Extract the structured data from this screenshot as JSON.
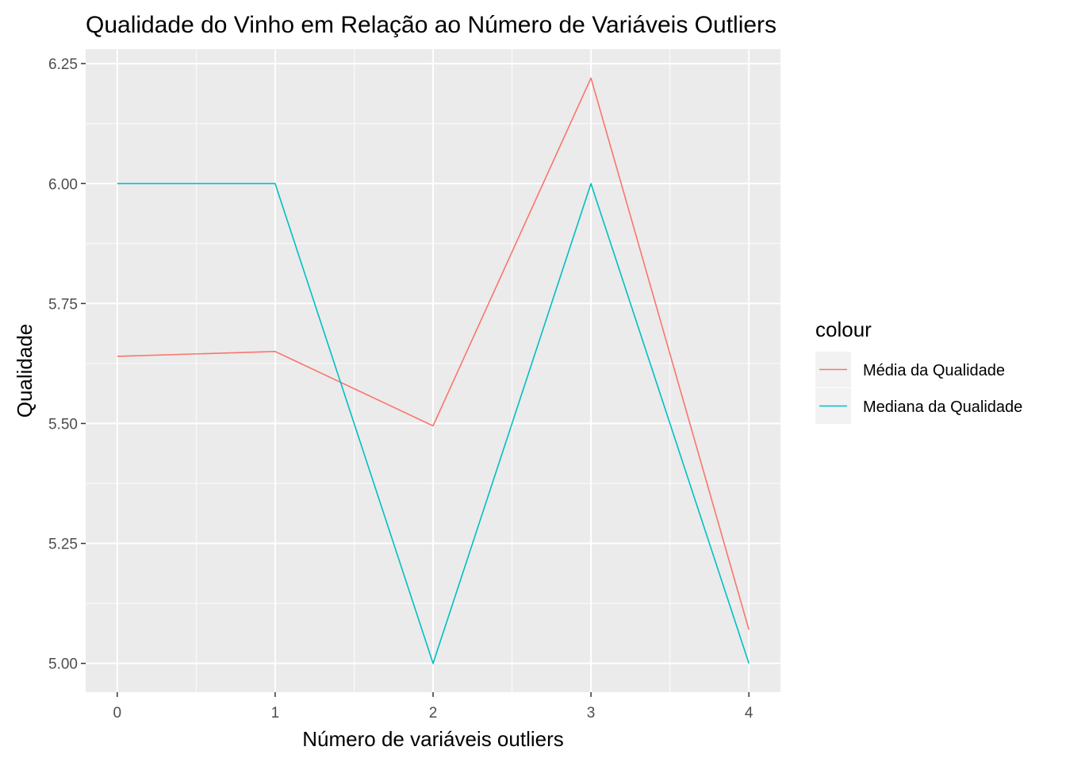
{
  "chart_data": {
    "type": "line",
    "title": "Qualidade do Vinho em Relação ao Número de Variáveis Outliers",
    "xlabel": "Número de variáveis outliers",
    "ylabel": "Qualidade",
    "x": [
      0,
      1,
      2,
      3,
      4
    ],
    "x_ticks": [
      "0",
      "1",
      "2",
      "3",
      "4"
    ],
    "xlim": [
      -0.2,
      4.2
    ],
    "y_ticks": [
      "5.00",
      "5.25",
      "5.50",
      "5.75",
      "6.00",
      "6.25"
    ],
    "y_tick_values": [
      5.0,
      5.25,
      5.5,
      5.75,
      6.0,
      6.25
    ],
    "ylim": [
      4.94,
      6.28
    ],
    "grid": true,
    "legend_title": "colour",
    "legend_position": "right",
    "series": [
      {
        "name": "Média da Qualidade",
        "color": "#F8766D",
        "values": [
          5.64,
          5.65,
          5.495,
          6.22,
          5.07
        ]
      },
      {
        "name": "Mediana da Qualidade",
        "color": "#00BFC4",
        "values": [
          6.0,
          6.0,
          5.0,
          6.0,
          5.0
        ]
      }
    ]
  },
  "colors": {
    "panel_background": "#EBEBEB",
    "grid_line": "#FFFFFF",
    "tick_text": "#4D4D4D",
    "tick_mark": "#333333",
    "legend_key_background": "#F2F2F2"
  }
}
